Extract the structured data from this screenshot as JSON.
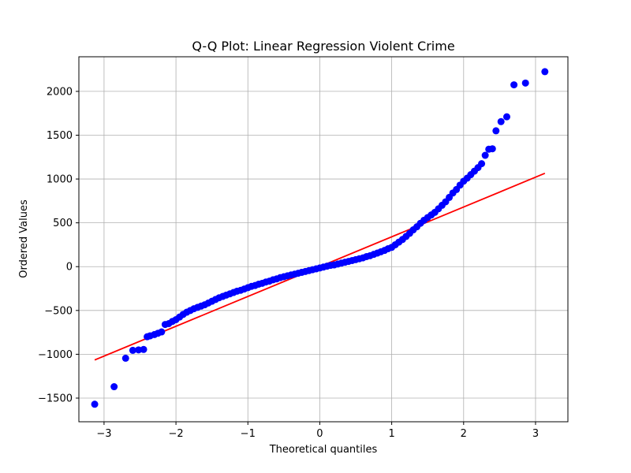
{
  "chart_data": {
    "type": "scatter",
    "title": "Q-Q Plot: Linear Regression Violent Crime",
    "xlabel": "Theoretical quantiles",
    "ylabel": "Ordered Values",
    "xlim": [
      -3.35,
      3.45
    ],
    "ylim": [
      -1770,
      2395
    ],
    "xticks": [
      -3,
      -2,
      -1,
      0,
      1,
      2,
      3
    ],
    "xtick_labels": [
      "−3",
      "−2",
      "−1",
      "0",
      "1",
      "2",
      "3"
    ],
    "yticks": [
      -1500,
      -1000,
      -500,
      0,
      500,
      1000,
      1500,
      2000
    ],
    "ytick_labels": [
      "−1500",
      "−1000",
      "−500",
      "0",
      "500",
      "1000",
      "1500",
      "2000"
    ],
    "grid": true,
    "colors": {
      "points": "#0000ff",
      "fit_line": "#ff0000"
    },
    "fit_line": {
      "x": [
        -3.13,
        3.13
      ],
      "y": [
        -1065,
        1065
      ]
    },
    "points": {
      "x": [
        -3.13,
        -2.86,
        -2.7,
        -2.6,
        -2.52,
        -2.45,
        -2.4,
        -2.36,
        -2.3,
        -2.25,
        -2.2,
        -2.15,
        -2.1,
        -2.05,
        -2.0,
        -1.95,
        -1.9,
        -1.85,
        -1.8,
        -1.75,
        -1.7,
        -1.65,
        -1.6,
        -1.55,
        -1.5,
        -1.45,
        -1.4,
        -1.35,
        -1.3,
        -1.25,
        -1.2,
        -1.15,
        -1.1,
        -1.05,
        -1.0,
        -0.95,
        -0.9,
        -0.85,
        -0.8,
        -0.75,
        -0.7,
        -0.65,
        -0.6,
        -0.55,
        -0.5,
        -0.45,
        -0.4,
        -0.35,
        -0.3,
        -0.25,
        -0.2,
        -0.15,
        -0.1,
        -0.05,
        0.0,
        0.05,
        0.1,
        0.15,
        0.2,
        0.25,
        0.3,
        0.35,
        0.4,
        0.45,
        0.5,
        0.55,
        0.6,
        0.65,
        0.7,
        0.75,
        0.8,
        0.85,
        0.9,
        0.95,
        1.0,
        1.05,
        1.1,
        1.15,
        1.2,
        1.25,
        1.3,
        1.35,
        1.4,
        1.45,
        1.5,
        1.55,
        1.6,
        1.65,
        1.7,
        1.75,
        1.8,
        1.85,
        1.9,
        1.95,
        2.0,
        2.05,
        2.1,
        2.15,
        2.2,
        2.25,
        2.3,
        2.35,
        2.4,
        2.45,
        2.52,
        2.6,
        2.7,
        2.86,
        3.13
      ],
      "y": [
        -1570,
        -1370,
        -1045,
        -955,
        -950,
        -945,
        -800,
        -790,
        -775,
        -760,
        -745,
        -660,
        -650,
        -625,
        -605,
        -575,
        -545,
        -520,
        -500,
        -480,
        -465,
        -450,
        -435,
        -415,
        -395,
        -375,
        -355,
        -340,
        -325,
        -310,
        -295,
        -280,
        -270,
        -255,
        -240,
        -225,
        -215,
        -200,
        -190,
        -175,
        -165,
        -150,
        -140,
        -125,
        -115,
        -105,
        -95,
        -85,
        -75,
        -65,
        -55,
        -45,
        -35,
        -25,
        -15,
        -5,
        5,
        15,
        20,
        30,
        40,
        50,
        60,
        70,
        80,
        90,
        100,
        115,
        125,
        140,
        155,
        170,
        185,
        205,
        220,
        250,
        280,
        310,
        345,
        380,
        420,
        455,
        495,
        530,
        560,
        590,
        620,
        660,
        700,
        740,
        790,
        840,
        880,
        930,
        975,
        1010,
        1050,
        1090,
        1130,
        1175,
        1270,
        1340,
        1345,
        1550,
        1655,
        1710,
        2075,
        2095,
        2225
      ]
    }
  }
}
